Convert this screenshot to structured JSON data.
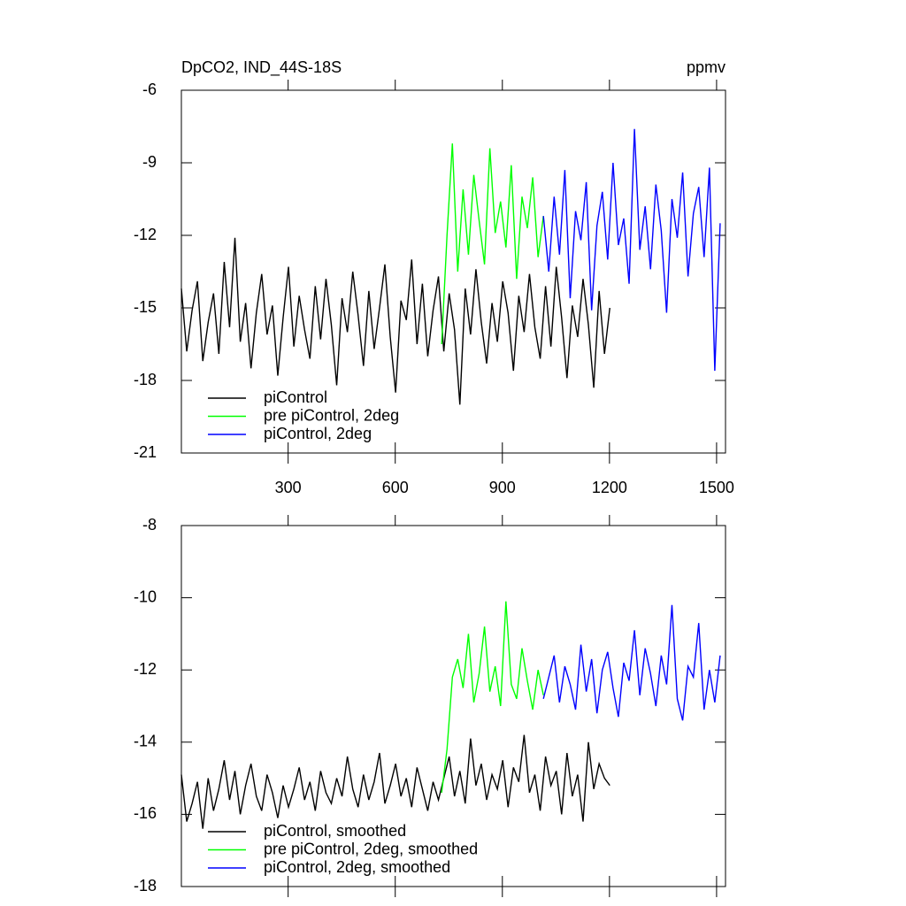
{
  "chart_data": [
    {
      "type": "line",
      "title": "DpCO2, IND_44S-18S",
      "units": "ppmv",
      "xlim": [
        1,
        1525
      ],
      "xticks": [
        300,
        600,
        900,
        1200,
        1500
      ],
      "ylim": [
        -21,
        -6
      ],
      "yticks": [
        -21,
        -18,
        -15,
        -12,
        -9,
        -6
      ],
      "legend": "lower left",
      "series": [
        {
          "name": "piControl",
          "color": "#000000",
          "x": [
            1,
            16,
            31,
            46,
            61,
            76,
            91,
            106,
            121,
            136,
            151,
            166,
            181,
            196,
            211,
            226,
            241,
            256,
            271,
            286,
            301,
            316,
            331,
            346,
            361,
            376,
            391,
            406,
            421,
            436,
            451,
            466,
            481,
            496,
            511,
            526,
            541,
            556,
            571,
            586,
            601,
            616,
            631,
            646,
            661,
            676,
            691,
            706,
            721,
            736,
            751,
            766,
            781,
            796,
            811,
            826,
            841,
            856,
            871,
            886,
            901,
            916,
            931,
            946,
            961,
            976,
            991,
            1006,
            1021,
            1036,
            1051,
            1066,
            1081,
            1096,
            1111,
            1126,
            1141,
            1156,
            1171,
            1186,
            1201
          ],
          "values": [
            -14.2,
            -16.8,
            -15.1,
            -13.9,
            -17.2,
            -15.6,
            -14.4,
            -16.9,
            -13.1,
            -15.8,
            -12.1,
            -16.4,
            -14.8,
            -17.5,
            -15.2,
            -13.6,
            -16.1,
            -14.9,
            -17.8,
            -15.4,
            -13.3,
            -16.6,
            -14.5,
            -15.9,
            -17.1,
            -14.1,
            -16.3,
            -13.8,
            -15.7,
            -18.2,
            -14.6,
            -16.0,
            -13.5,
            -15.3,
            -17.4,
            -14.3,
            -16.7,
            -15.0,
            -13.2,
            -16.2,
            -18.5,
            -14.7,
            -15.5,
            -13.0,
            -16.5,
            -14.0,
            -17.0,
            -15.1,
            -13.7,
            -16.8,
            -14.4,
            -15.9,
            -19.0,
            -14.2,
            -16.1,
            -13.4,
            -15.6,
            -17.3,
            -14.8,
            -16.4,
            -13.9,
            -15.2,
            -17.6,
            -14.5,
            -16.0,
            -13.6,
            -15.8,
            -17.1,
            -14.1,
            -16.6,
            -13.3,
            -15.4,
            -17.9,
            -14.9,
            -16.2,
            -13.8,
            -15.7,
            -18.3,
            -14.3,
            -16.9,
            -15.0
          ]
        },
        {
          "name": "pre piControl, 2deg",
          "color": "#00ff00",
          "x": [
            730,
            745,
            760,
            775,
            790,
            805,
            820,
            835,
            850,
            865,
            880,
            895,
            910,
            925,
            940,
            955,
            970,
            985,
            1000,
            1015
          ],
          "values": [
            -16.5,
            -12.0,
            -8.2,
            -13.5,
            -10.1,
            -12.8,
            -9.5,
            -11.4,
            -13.2,
            -8.4,
            -11.9,
            -10.6,
            -12.5,
            -9.1,
            -13.8,
            -10.4,
            -11.7,
            -9.6,
            -12.9,
            -11.2
          ]
        },
        {
          "name": "piControl, 2deg",
          "color": "#0000ff",
          "x": [
            1015,
            1030,
            1045,
            1060,
            1075,
            1090,
            1105,
            1120,
            1135,
            1150,
            1165,
            1180,
            1195,
            1210,
            1225,
            1240,
            1255,
            1270,
            1285,
            1300,
            1315,
            1330,
            1345,
            1360,
            1375,
            1390,
            1405,
            1420,
            1435,
            1450,
            1465,
            1480,
            1495,
            1510
          ],
          "values": [
            -11.2,
            -13.5,
            -10.4,
            -12.8,
            -9.3,
            -14.6,
            -11.0,
            -12.2,
            -9.8,
            -15.1,
            -11.6,
            -10.2,
            -13.0,
            -9.0,
            -12.4,
            -11.3,
            -14.0,
            -7.6,
            -12.6,
            -10.8,
            -13.4,
            -9.9,
            -11.8,
            -15.2,
            -10.5,
            -12.1,
            -9.4,
            -13.7,
            -11.1,
            -10.0,
            -12.9,
            -9.2,
            -17.6,
            -11.5
          ]
        }
      ]
    },
    {
      "type": "line",
      "xlim": [
        1,
        1525
      ],
      "xticks": [
        300,
        600,
        900,
        1200,
        1500
      ],
      "ylim": [
        -18,
        -8
      ],
      "yticks": [
        -18,
        -16,
        -14,
        -12,
        -10,
        -8
      ],
      "legend": "lower left",
      "series": [
        {
          "name": "piControl, smoothed",
          "color": "#000000",
          "x": [
            1,
            16,
            31,
            46,
            61,
            76,
            91,
            106,
            121,
            136,
            151,
            166,
            181,
            196,
            211,
            226,
            241,
            256,
            271,
            286,
            301,
            316,
            331,
            346,
            361,
            376,
            391,
            406,
            421,
            436,
            451,
            466,
            481,
            496,
            511,
            526,
            541,
            556,
            571,
            586,
            601,
            616,
            631,
            646,
            661,
            676,
            691,
            706,
            721,
            736,
            751,
            766,
            781,
            796,
            811,
            826,
            841,
            856,
            871,
            886,
            901,
            916,
            931,
            946,
            961,
            976,
            991,
            1006,
            1021,
            1036,
            1051,
            1066,
            1081,
            1096,
            1111,
            1126,
            1141,
            1156,
            1171,
            1186,
            1201
          ],
          "values": [
            -14.9,
            -16.2,
            -15.7,
            -15.1,
            -16.4,
            -15.0,
            -15.9,
            -15.3,
            -14.5,
            -15.6,
            -14.8,
            -16.0,
            -15.2,
            -14.6,
            -15.5,
            -15.9,
            -14.9,
            -15.4,
            -16.1,
            -15.2,
            -15.8,
            -15.3,
            -14.7,
            -15.6,
            -15.1,
            -15.9,
            -14.8,
            -15.4,
            -15.7,
            -15.0,
            -15.5,
            -14.4,
            -15.3,
            -15.8,
            -14.9,
            -15.6,
            -15.1,
            -14.3,
            -15.7,
            -15.2,
            -14.6,
            -15.5,
            -15.0,
            -15.8,
            -14.7,
            -15.3,
            -15.9,
            -15.1,
            -15.6,
            -15.0,
            -14.4,
            -15.5,
            -14.8,
            -15.7,
            -13.9,
            -15.2,
            -14.6,
            -15.6,
            -14.9,
            -15.3,
            -14.5,
            -15.8,
            -14.7,
            -15.1,
            -13.8,
            -15.4,
            -14.9,
            -15.9,
            -14.4,
            -15.2,
            -14.8,
            -16.0,
            -14.3,
            -15.5,
            -14.9,
            -16.2,
            -14.0,
            -15.3,
            -14.6,
            -15.0,
            -15.2
          ]
        },
        {
          "name": "pre piControl, 2deg, smoothed",
          "color": "#00ff00",
          "x": [
            730,
            745,
            760,
            775,
            790,
            805,
            820,
            835,
            850,
            865,
            880,
            895,
            910,
            925,
            940,
            955,
            970,
            985,
            1000,
            1015
          ],
          "values": [
            -15.4,
            -14.2,
            -12.2,
            -11.7,
            -12.5,
            -11.0,
            -12.9,
            -12.1,
            -10.8,
            -12.6,
            -11.9,
            -13.0,
            -10.1,
            -12.4,
            -12.8,
            -11.4,
            -12.3,
            -13.1,
            -12.0,
            -12.7
          ]
        },
        {
          "name": "piControl, 2deg, smoothed",
          "color": "#0000ff",
          "x": [
            1015,
            1030,
            1045,
            1060,
            1075,
            1090,
            1105,
            1120,
            1135,
            1150,
            1165,
            1180,
            1195,
            1210,
            1225,
            1240,
            1255,
            1270,
            1285,
            1300,
            1315,
            1330,
            1345,
            1360,
            1375,
            1390,
            1405,
            1420,
            1435,
            1450,
            1465,
            1480,
            1495,
            1510
          ],
          "values": [
            -12.8,
            -12.2,
            -11.6,
            -12.9,
            -11.9,
            -12.4,
            -13.1,
            -11.3,
            -12.6,
            -11.7,
            -13.2,
            -12.0,
            -11.5,
            -12.5,
            -13.3,
            -11.8,
            -12.3,
            -10.9,
            -12.7,
            -11.4,
            -12.1,
            -13.0,
            -11.6,
            -12.4,
            -10.2,
            -12.8,
            -13.4,
            -11.9,
            -12.2,
            -10.7,
            -13.1,
            -12.0,
            -12.9,
            -11.6
          ]
        }
      ]
    }
  ]
}
